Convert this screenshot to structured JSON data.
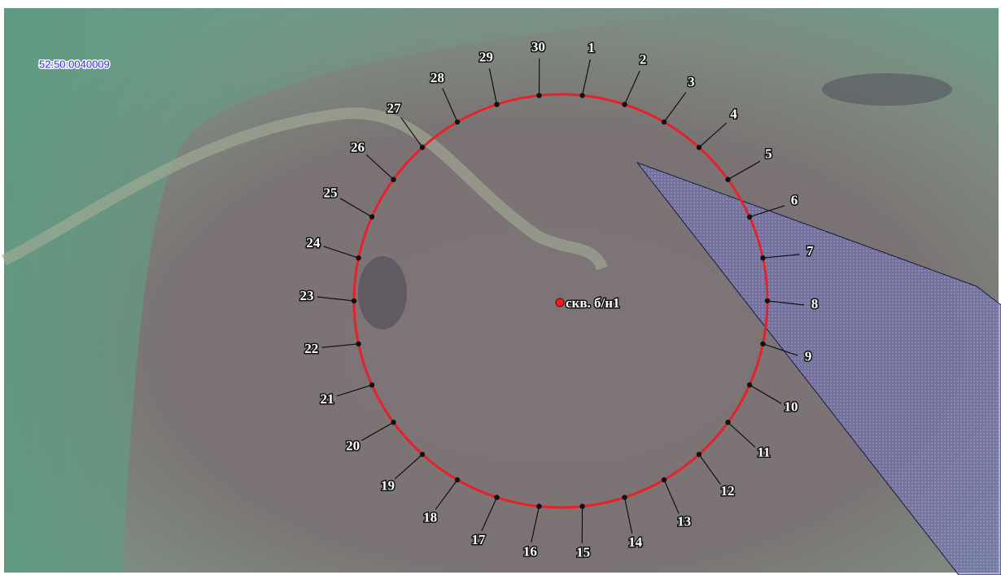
{
  "parcel": {
    "label": "52:50:0040009"
  },
  "well": {
    "label": "скв. б/н1"
  },
  "points": [
    {
      "label": "1"
    },
    {
      "label": "2"
    },
    {
      "label": "3"
    },
    {
      "label": "4"
    },
    {
      "label": "5"
    },
    {
      "label": "6"
    },
    {
      "label": "7"
    },
    {
      "label": "8"
    },
    {
      "label": "9"
    },
    {
      "label": "10"
    },
    {
      "label": "11"
    },
    {
      "label": "12"
    },
    {
      "label": "13"
    },
    {
      "label": "14"
    },
    {
      "label": "15"
    },
    {
      "label": "16"
    },
    {
      "label": "17"
    },
    {
      "label": "18"
    },
    {
      "label": "19"
    },
    {
      "label": "20"
    },
    {
      "label": "21"
    },
    {
      "label": "22"
    },
    {
      "label": "23"
    },
    {
      "label": "24"
    },
    {
      "label": "25"
    },
    {
      "label": "26"
    },
    {
      "label": "27"
    },
    {
      "label": "28"
    },
    {
      "label": "29"
    },
    {
      "label": "30"
    }
  ]
}
